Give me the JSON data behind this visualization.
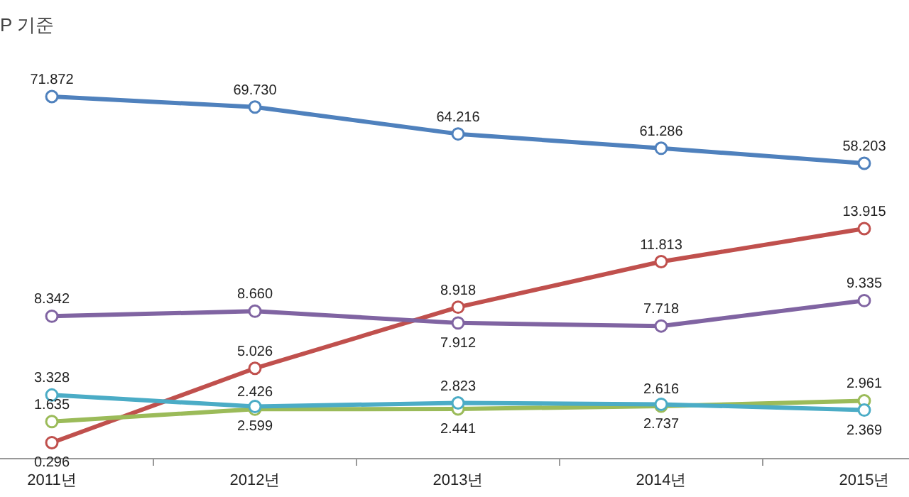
{
  "chart_data": [
    {
      "type": "line",
      "title": "P 기준",
      "categories": [
        null,
        null,
        null,
        null,
        null
      ],
      "series": [
        {
          "color": "#4f81bd",
          "values": [
            71.872,
            69.73,
            64.216,
            61.286,
            58.203
          ],
          "value_labels": [
            "71.872",
            "69.730",
            "64.216",
            "61.286",
            "58.203"
          ]
        }
      ],
      "tick_labels": false,
      "marker": "circle"
    },
    {
      "type": "line",
      "categories": [
        "2011년",
        "2012년",
        "2013년",
        "2014년",
        "2015년"
      ],
      "series": [
        {
          "color": "#c0504d",
          "values": [
            0.296,
            5.026,
            8.918,
            11.813,
            13.915
          ],
          "value_labels": [
            "0.296",
            "5.026",
            "8.918",
            "11.813",
            "13.915"
          ]
        },
        {
          "color": "#8064a2",
          "values": [
            8.342,
            8.66,
            7.912,
            7.718,
            9.335
          ],
          "value_labels": [
            "8.342",
            "8.660",
            "7.912",
            "7.718",
            "9.335"
          ]
        },
        {
          "color": "#9bbb59",
          "values": [
            1.635,
            2.426,
            2.441,
            2.616,
            2.961
          ],
          "value_labels": [
            "1.635",
            "2.426",
            "2.441",
            "2.616",
            "2.961"
          ]
        },
        {
          "color": "#4bacc6",
          "values": [
            3.328,
            2.599,
            2.823,
            2.737,
            2.369
          ],
          "value_labels": [
            "3.328",
            "2.599",
            "2.823",
            "2.737",
            "2.369"
          ]
        }
      ],
      "tick_labels": "x",
      "marker": "circle"
    }
  ]
}
